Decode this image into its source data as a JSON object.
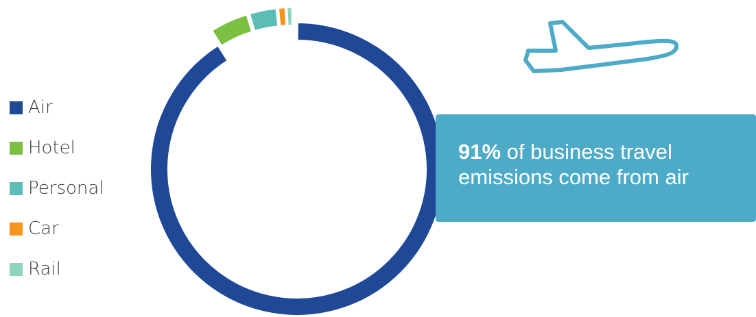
{
  "chart_data": {
    "type": "pie",
    "style": "donut",
    "categories": [
      "Air",
      "Hotel",
      "Personal",
      "Car",
      "Rail"
    ],
    "values": [
      91,
      4.3,
      3.1,
      0.9,
      0.7
    ],
    "unit": "%",
    "title": "",
    "legend_position": "left",
    "exploded_slice": "Air",
    "colors": [
      "#1f4897",
      "#7bc043",
      "#5cbcb6",
      "#f7941d",
      "#8fd4be"
    ]
  },
  "callout": {
    "highlight": "91%",
    "text_line1": " of business travel",
    "text_line2": "emissions come from air",
    "background": "#4eabc8"
  },
  "icon": {
    "name": "airplane-icon",
    "color": "#4eabc8"
  }
}
